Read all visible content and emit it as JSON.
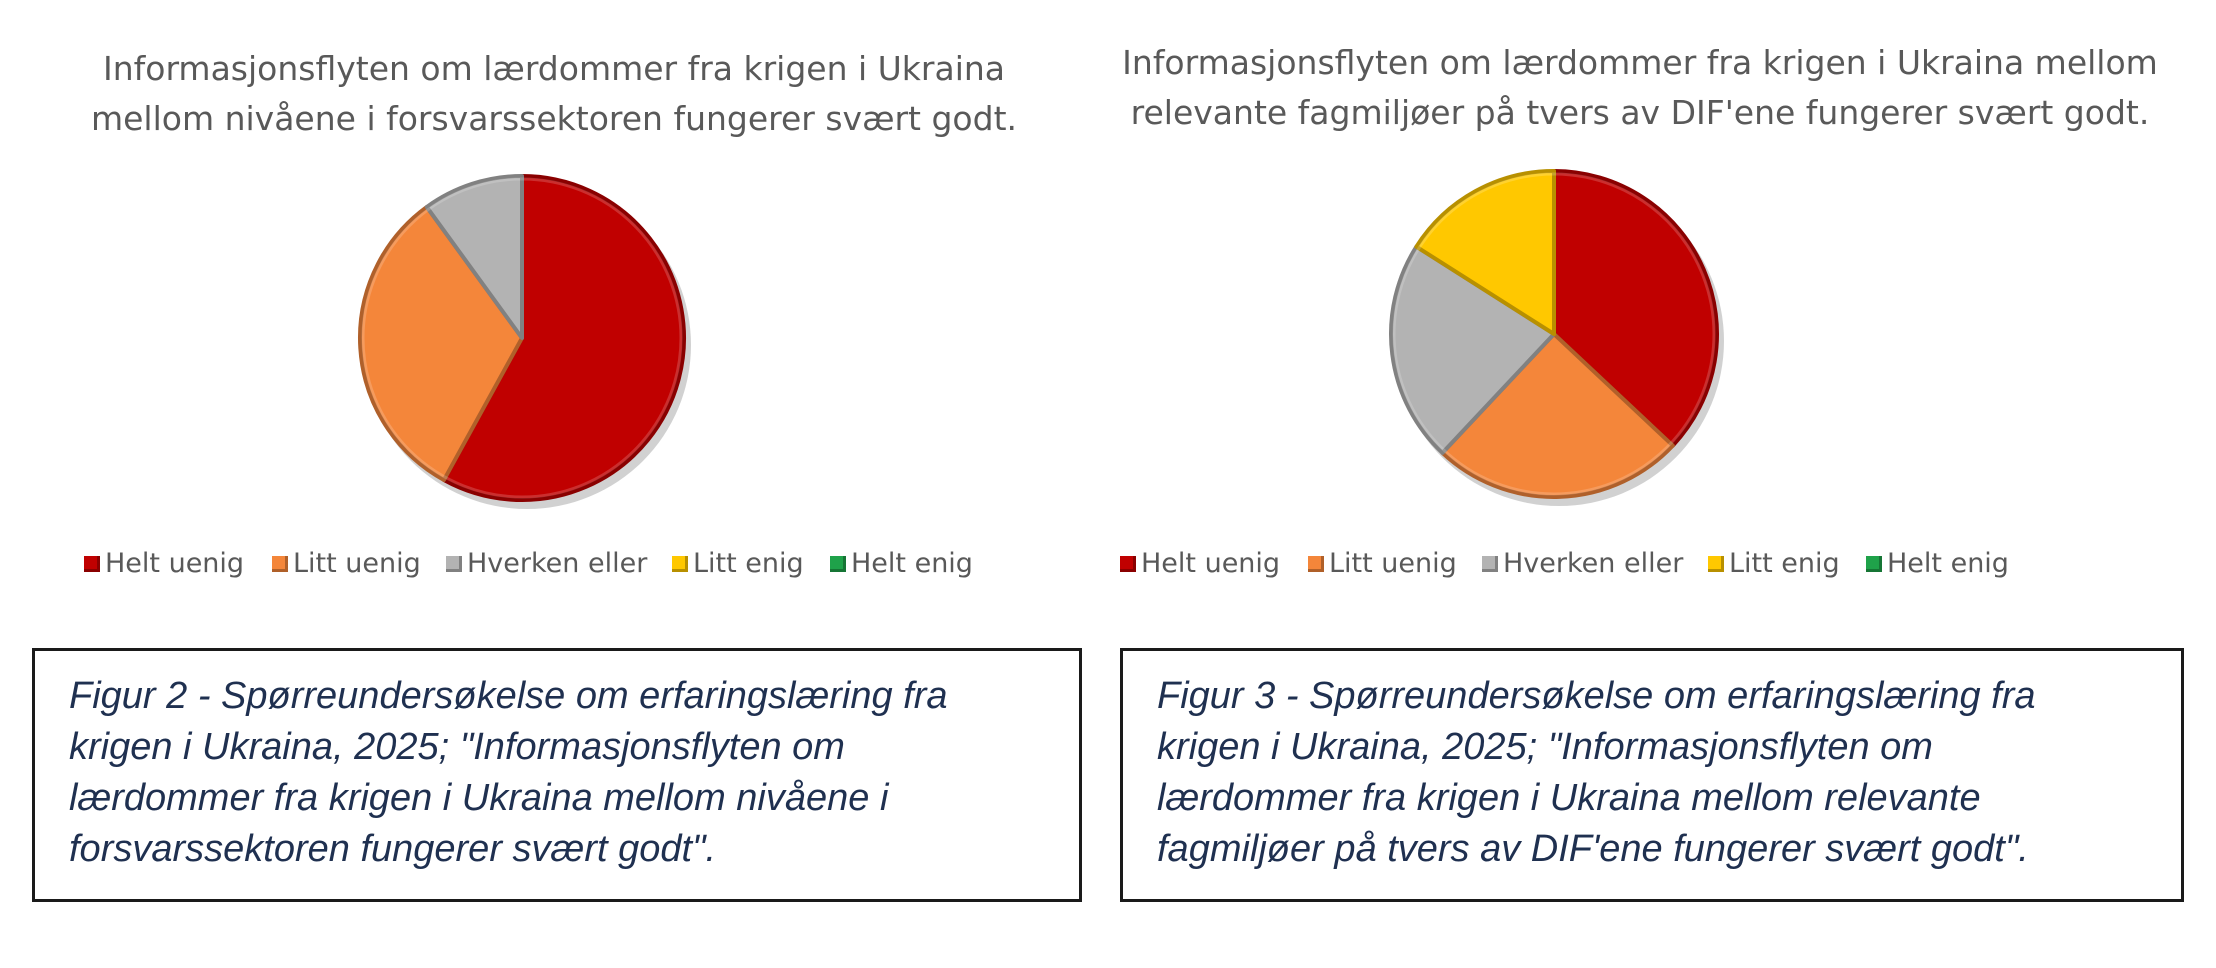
{
  "legend": {
    "helt_uenig": "Helt uenig",
    "litt_uenig": "Litt uenig",
    "hverken_eller": "Hverken eller",
    "litt_enig": "Litt enig",
    "helt_enig": "Helt enig"
  },
  "colors": {
    "helt_uenig": "#c00000",
    "litt_uenig": "#f4863a",
    "hverken_eller": "#b3b3b3",
    "litt_enig": "#ffc800",
    "helt_enig": "#1fa24a"
  },
  "chart_data": [
    {
      "type": "pie",
      "title_lines": [
        "Informasjonsflyten om lærdommer fra krigen i Ukraina",
        "mellom nivåene i forsvarssektoren fungerer svært godt."
      ],
      "categories": [
        "Helt uenig",
        "Litt uenig",
        "Hverken eller",
        "Litt enig",
        "Helt enig"
      ],
      "values": [
        58,
        32,
        10,
        0,
        0
      ],
      "legend_position": "bottom"
    },
    {
      "type": "pie",
      "title_lines": [
        "Informasjonsflyten om lærdommer fra krigen i Ukraina mellom",
        "relevante fagmiljøer på tvers av DIF'ene fungerer svært godt."
      ],
      "categories": [
        "Helt uenig",
        "Litt uenig",
        "Hverken eller",
        "Litt enig",
        "Helt enig"
      ],
      "values": [
        37,
        25,
        22,
        16,
        0
      ],
      "legend_position": "bottom"
    }
  ],
  "captions": {
    "fig2_lines": [
      "Figur 2 - Spørreundersøkelse om erfaringslæring fra",
      "krigen i Ukraina, 2025; \"Informasjonsflyten om",
      "lærdommer fra krigen i Ukraina mellom nivåene i",
      "forsvarssektoren fungerer svært godt\"."
    ],
    "fig3_lines": [
      "Figur 3 - Spørreundersøkelse om erfaringslæring fra",
      "krigen i Ukraina, 2025; \"Informasjonsflyten om",
      "lærdommer fra krigen i Ukraina mellom relevante",
      "fagmiljøer på tvers av DIF'ene fungerer svært godt\"."
    ]
  }
}
